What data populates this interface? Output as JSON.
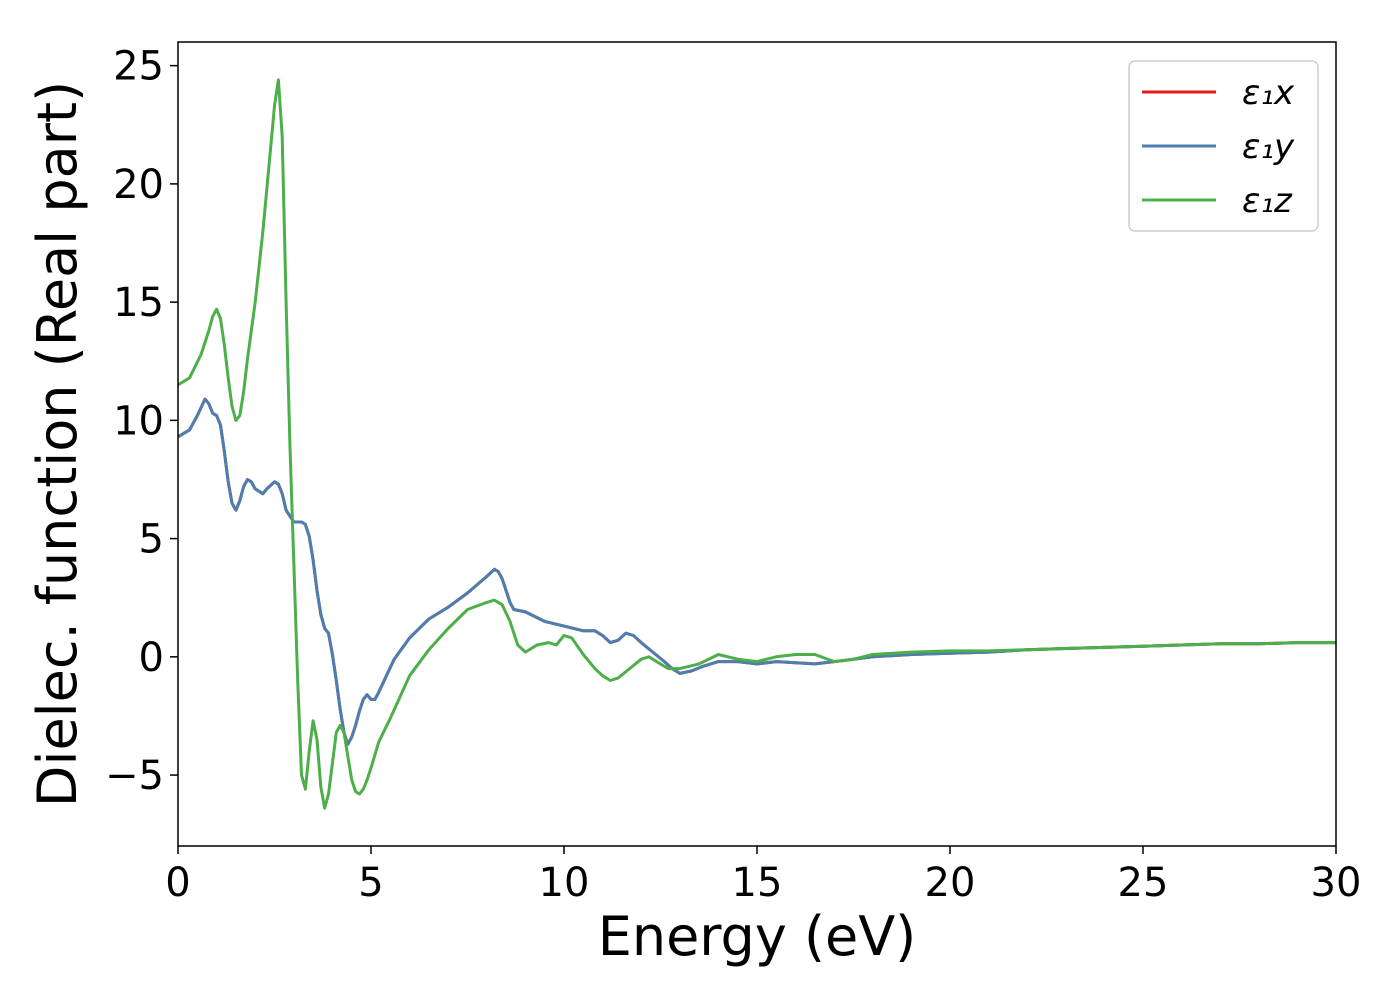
{
  "chart_data": {
    "type": "line",
    "title": "",
    "xlabel": "Energy (eV)",
    "ylabel": "Dielec. function (Real part)",
    "xlim": [
      0,
      30
    ],
    "ylim": [
      -8,
      26
    ],
    "xticks": [
      0,
      5,
      10,
      15,
      20,
      25,
      30
    ],
    "xtick_labels": [
      "0",
      "5",
      "10",
      "15",
      "20",
      "25",
      "30"
    ],
    "yticks": [
      -5,
      0,
      5,
      10,
      15,
      20,
      25
    ],
    "ytick_labels": [
      "−5",
      "0",
      "5",
      "10",
      "15",
      "20",
      "25"
    ],
    "grid": false,
    "legend": "top-right",
    "series": [
      {
        "name": "ε₁x",
        "color": "#e41a1c",
        "x": [
          0,
          0.3,
          0.5,
          0.7,
          0.8,
          0.9,
          1.0,
          1.1,
          1.2,
          1.3,
          1.4,
          1.5,
          1.6,
          1.7,
          1.8,
          1.9,
          2.0,
          2.2,
          2.3,
          2.5,
          2.6,
          2.7,
          2.8,
          3.0,
          3.1,
          3.2,
          3.3,
          3.4,
          3.5,
          3.6,
          3.7,
          3.8,
          3.9,
          4.0,
          4.1,
          4.2,
          4.3,
          4.4,
          4.5,
          4.6,
          4.7,
          4.8,
          4.9,
          5.0,
          5.1,
          5.2,
          5.4,
          5.6,
          6.0,
          6.5,
          7.0,
          7.5,
          8.0,
          8.2,
          8.3,
          8.4,
          8.5,
          8.6,
          8.7,
          9.0,
          9.5,
          10.0,
          10.5,
          10.8,
          11.0,
          11.2,
          11.4,
          11.6,
          11.8,
          12.0,
          12.3,
          12.6,
          12.8,
          13.0,
          13.3,
          13.6,
          14.0,
          14.5,
          15.0,
          15.5,
          16.0,
          16.5,
          17.0,
          17.5,
          18.0,
          19.0,
          20.0,
          21.0,
          22.0,
          23.0,
          24.0,
          25.0,
          26.0,
          27.0,
          28.0,
          29.0,
          30.0
        ],
        "y": [
          9.3,
          9.6,
          10.2,
          10.9,
          10.7,
          10.3,
          10.2,
          9.8,
          8.7,
          7.4,
          6.5,
          6.2,
          6.6,
          7.2,
          7.5,
          7.4,
          7.1,
          6.9,
          7.1,
          7.4,
          7.3,
          6.9,
          6.2,
          5.7,
          5.7,
          5.7,
          5.6,
          5.1,
          4.1,
          2.8,
          1.8,
          1.2,
          1.0,
          0.1,
          -1.0,
          -2.2,
          -3.2,
          -3.7,
          -3.4,
          -2.9,
          -2.3,
          -1.8,
          -1.6,
          -1.8,
          -1.8,
          -1.5,
          -0.8,
          -0.1,
          0.8,
          1.6,
          2.1,
          2.7,
          3.4,
          3.7,
          3.6,
          3.3,
          2.8,
          2.3,
          2.0,
          1.9,
          1.5,
          1.3,
          1.1,
          1.1,
          0.9,
          0.6,
          0.7,
          1.0,
          0.9,
          0.6,
          0.2,
          -0.2,
          -0.5,
          -0.7,
          -0.6,
          -0.4,
          -0.2,
          -0.2,
          -0.3,
          -0.2,
          -0.25,
          -0.3,
          -0.2,
          -0.1,
          0.0,
          0.1,
          0.15,
          0.2,
          0.3,
          0.35,
          0.4,
          0.45,
          0.5,
          0.55,
          0.55,
          0.6,
          0.6
        ]
      },
      {
        "name": "ε₁y",
        "color": "#4a7fb0",
        "x": [
          0,
          0.3,
          0.5,
          0.7,
          0.8,
          0.9,
          1.0,
          1.1,
          1.2,
          1.3,
          1.4,
          1.5,
          1.6,
          1.7,
          1.8,
          1.9,
          2.0,
          2.2,
          2.3,
          2.5,
          2.6,
          2.7,
          2.8,
          3.0,
          3.1,
          3.2,
          3.3,
          3.4,
          3.5,
          3.6,
          3.7,
          3.8,
          3.9,
          4.0,
          4.1,
          4.2,
          4.3,
          4.4,
          4.5,
          4.6,
          4.7,
          4.8,
          4.9,
          5.0,
          5.1,
          5.2,
          5.4,
          5.6,
          6.0,
          6.5,
          7.0,
          7.5,
          8.0,
          8.2,
          8.3,
          8.4,
          8.5,
          8.6,
          8.7,
          9.0,
          9.5,
          10.0,
          10.5,
          10.8,
          11.0,
          11.2,
          11.4,
          11.6,
          11.8,
          12.0,
          12.3,
          12.6,
          12.8,
          13.0,
          13.3,
          13.6,
          14.0,
          14.5,
          15.0,
          15.5,
          16.0,
          16.5,
          17.0,
          17.5,
          18.0,
          19.0,
          20.0,
          21.0,
          22.0,
          23.0,
          24.0,
          25.0,
          26.0,
          27.0,
          28.0,
          29.0,
          30.0
        ],
        "y": [
          9.3,
          9.6,
          10.2,
          10.9,
          10.7,
          10.3,
          10.2,
          9.8,
          8.7,
          7.4,
          6.5,
          6.2,
          6.6,
          7.2,
          7.5,
          7.4,
          7.1,
          6.9,
          7.1,
          7.4,
          7.3,
          6.9,
          6.2,
          5.7,
          5.7,
          5.7,
          5.6,
          5.1,
          4.1,
          2.8,
          1.8,
          1.2,
          1.0,
          0.1,
          -1.0,
          -2.2,
          -3.2,
          -3.7,
          -3.4,
          -2.9,
          -2.3,
          -1.8,
          -1.6,
          -1.8,
          -1.8,
          -1.5,
          -0.8,
          -0.1,
          0.8,
          1.6,
          2.1,
          2.7,
          3.4,
          3.7,
          3.6,
          3.3,
          2.8,
          2.3,
          2.0,
          1.9,
          1.5,
          1.3,
          1.1,
          1.1,
          0.9,
          0.6,
          0.7,
          1.0,
          0.9,
          0.6,
          0.2,
          -0.2,
          -0.5,
          -0.7,
          -0.6,
          -0.4,
          -0.2,
          -0.2,
          -0.3,
          -0.2,
          -0.25,
          -0.3,
          -0.2,
          -0.1,
          0.0,
          0.1,
          0.15,
          0.2,
          0.3,
          0.35,
          0.4,
          0.45,
          0.5,
          0.55,
          0.55,
          0.6,
          0.6
        ]
      },
      {
        "name": "ε₁z",
        "color": "#4daf4a",
        "x": [
          0,
          0.3,
          0.6,
          0.8,
          0.9,
          1.0,
          1.1,
          1.2,
          1.3,
          1.4,
          1.5,
          1.6,
          1.7,
          1.8,
          2.0,
          2.2,
          2.4,
          2.5,
          2.6,
          2.7,
          2.8,
          2.9,
          3.0,
          3.1,
          3.2,
          3.3,
          3.4,
          3.5,
          3.6,
          3.7,
          3.8,
          3.9,
          4.0,
          4.1,
          4.2,
          4.3,
          4.4,
          4.5,
          4.6,
          4.7,
          4.8,
          4.9,
          5.0,
          5.2,
          5.5,
          6.0,
          6.5,
          7.0,
          7.5,
          8.0,
          8.2,
          8.4,
          8.6,
          8.8,
          9.0,
          9.3,
          9.6,
          9.8,
          10.0,
          10.2,
          10.5,
          10.8,
          11.0,
          11.2,
          11.4,
          11.7,
          12.0,
          12.2,
          12.4,
          12.7,
          13.0,
          13.5,
          14.0,
          14.5,
          15.0,
          15.5,
          16.0,
          16.5,
          17.0,
          17.5,
          18.0,
          19.0,
          20.0,
          21.0,
          22.0,
          23.0,
          24.0,
          25.0,
          26.0,
          27.0,
          28.0,
          29.0,
          30.0
        ],
        "y": [
          11.5,
          11.8,
          12.8,
          13.8,
          14.4,
          14.7,
          14.3,
          13.2,
          11.8,
          10.6,
          10.0,
          10.2,
          11.2,
          12.6,
          15.0,
          18.0,
          21.5,
          23.3,
          24.4,
          22.0,
          15.0,
          9.0,
          4.0,
          -1.0,
          -5.0,
          -5.6,
          -4.0,
          -2.7,
          -3.5,
          -5.5,
          -6.4,
          -5.8,
          -4.5,
          -3.2,
          -2.9,
          -3.2,
          -4.2,
          -5.2,
          -5.7,
          -5.8,
          -5.6,
          -5.2,
          -4.7,
          -3.6,
          -2.6,
          -0.8,
          0.3,
          1.2,
          2.0,
          2.3,
          2.4,
          2.2,
          1.5,
          0.5,
          0.2,
          0.5,
          0.6,
          0.5,
          0.9,
          0.8,
          0.1,
          -0.5,
          -0.8,
          -1.0,
          -0.9,
          -0.5,
          -0.1,
          0.0,
          -0.2,
          -0.5,
          -0.5,
          -0.3,
          0.1,
          -0.1,
          -0.2,
          0.0,
          0.1,
          0.1,
          -0.2,
          -0.1,
          0.1,
          0.2,
          0.25,
          0.25,
          0.3,
          0.35,
          0.4,
          0.45,
          0.5,
          0.55,
          0.55,
          0.6,
          0.6
        ]
      }
    ]
  }
}
